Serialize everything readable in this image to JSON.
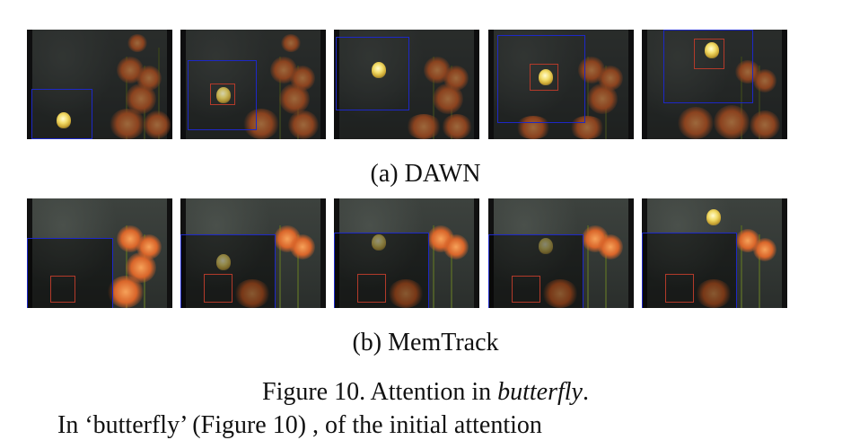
{
  "captions": {
    "a": "(a) DAWN",
    "b": "(b) MemTrack"
  },
  "figure": {
    "label": "Figure 10. Attention in ",
    "subject": "butterfly",
    "end": "."
  },
  "body_fragment": "In ‘butterfly’ (Figure 10) , of the initial attention",
  "colors": {
    "attention_box": "#1d28c7",
    "target_box": "#b33a2a"
  }
}
